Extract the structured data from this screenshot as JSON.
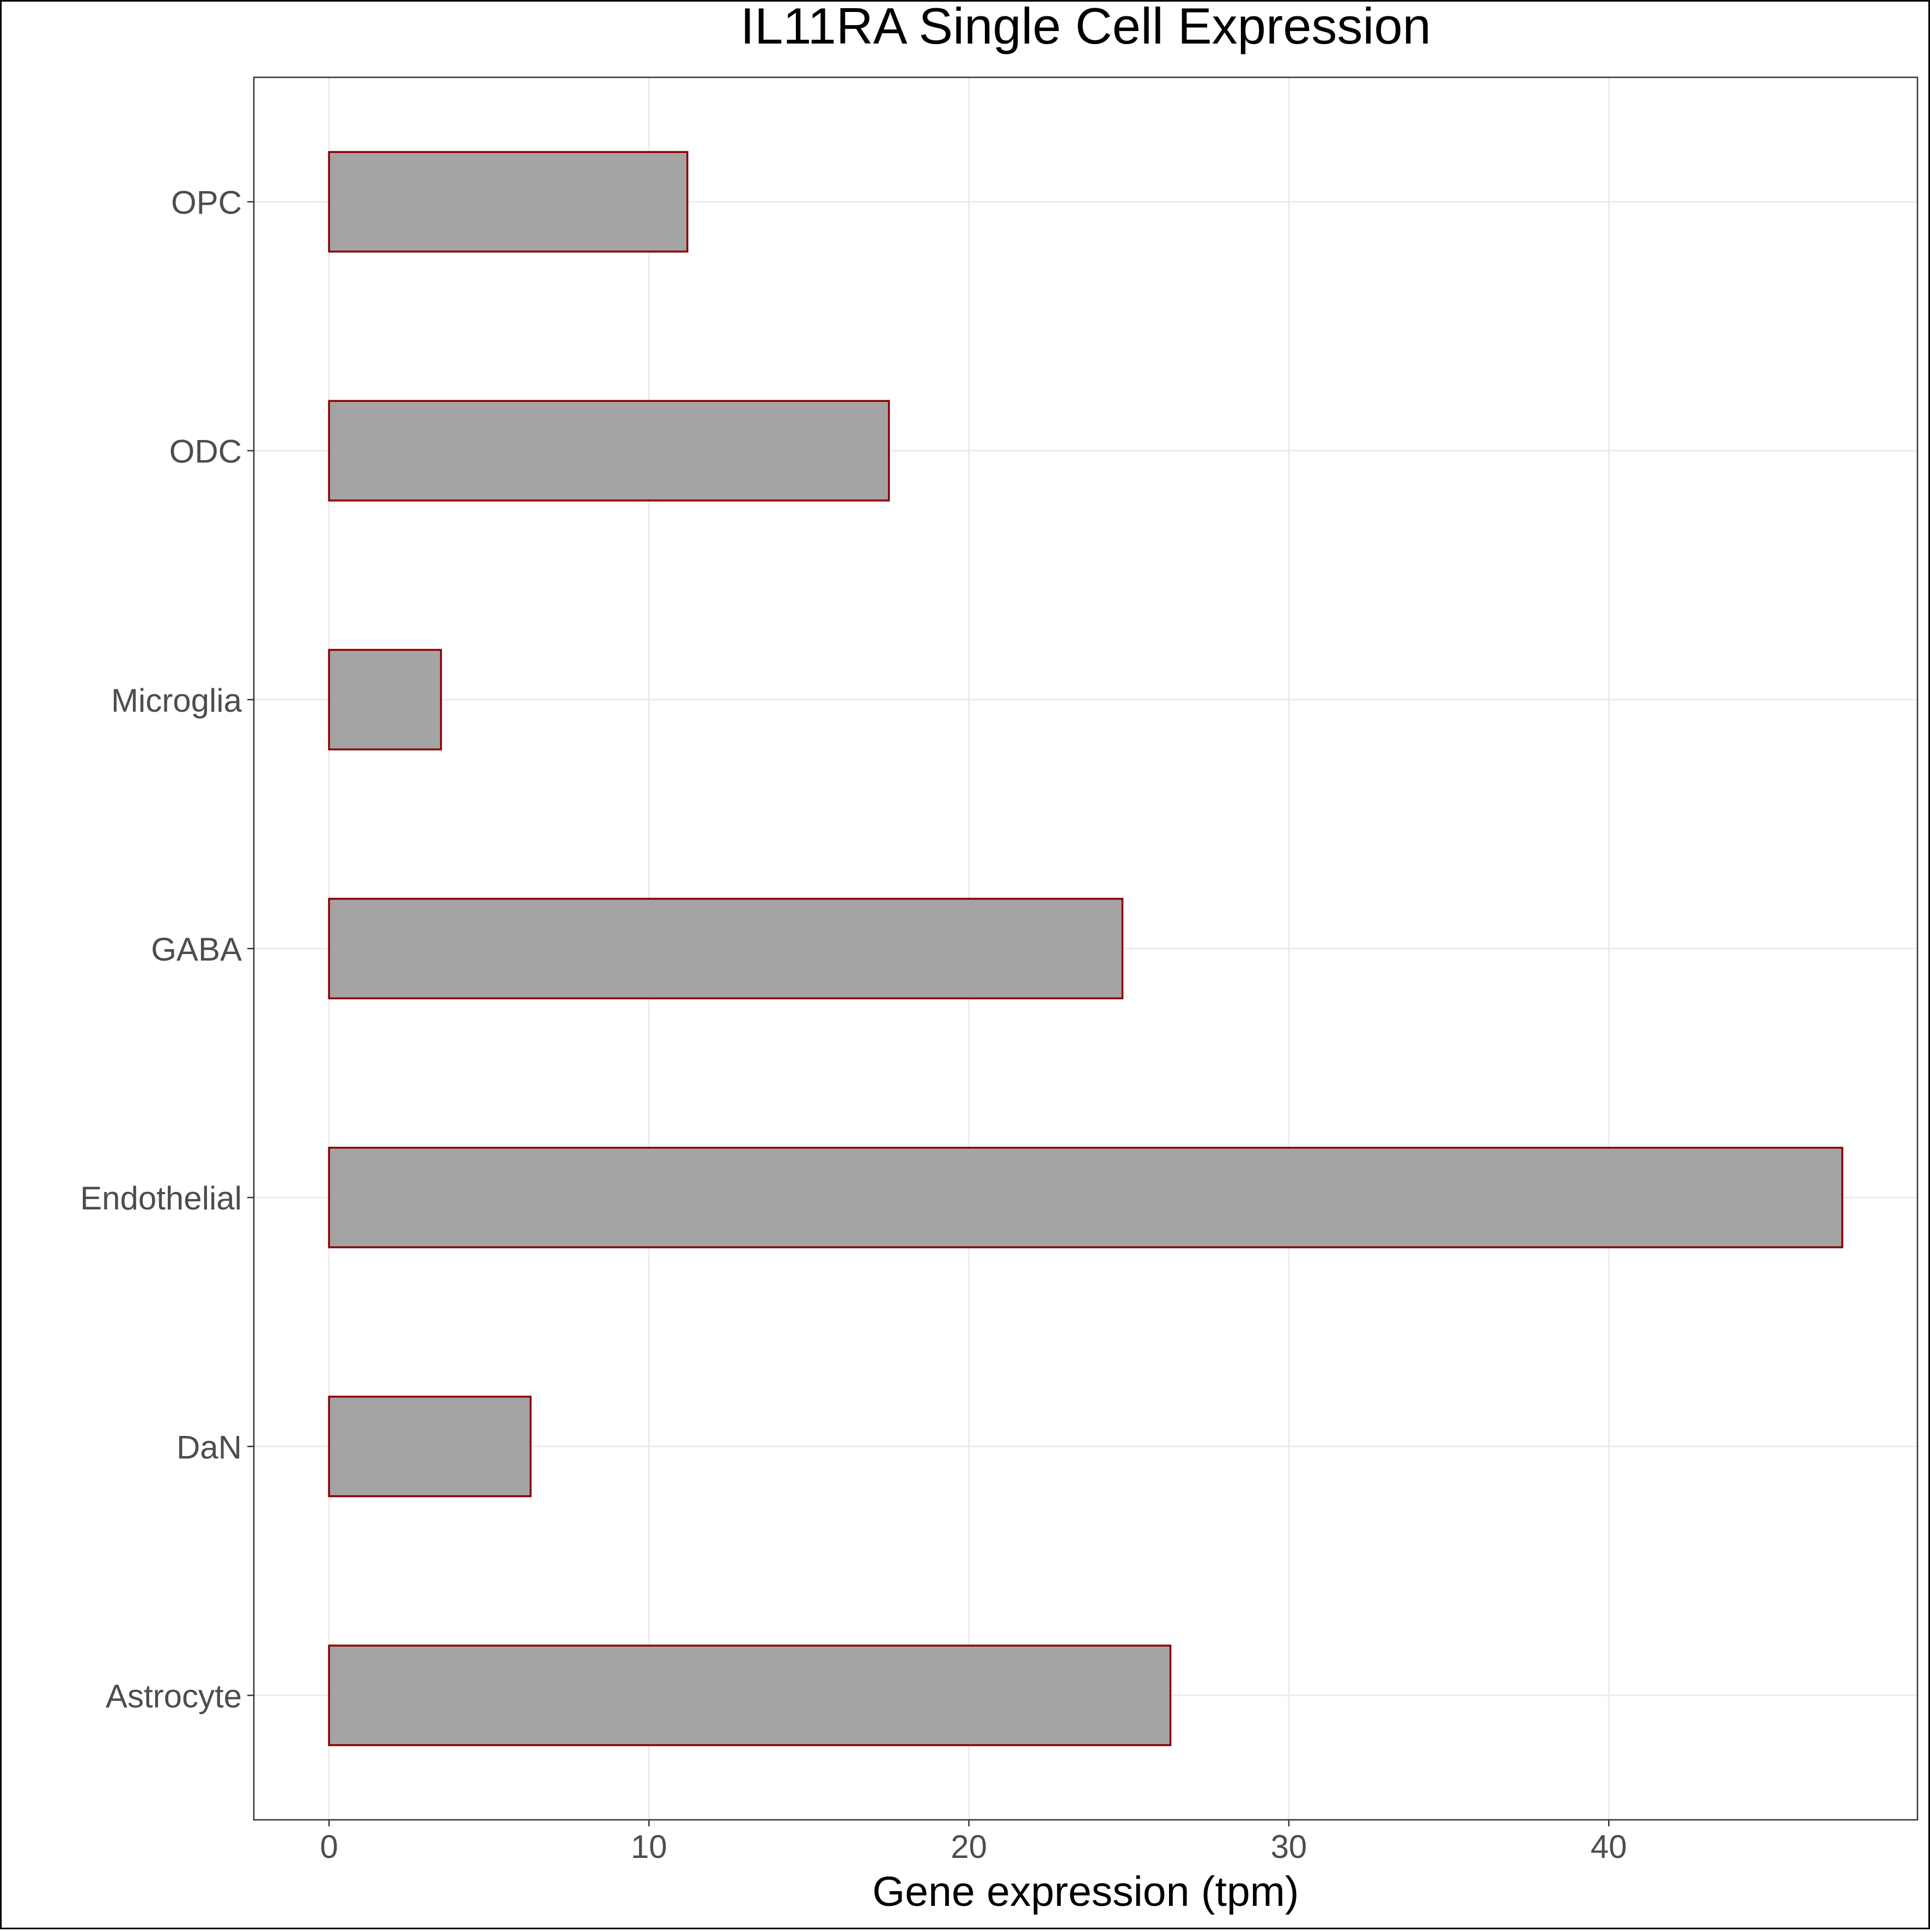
{
  "chart_data": {
    "type": "bar",
    "orientation": "horizontal",
    "title": "IL11RA Single Cell Expression",
    "xlabel": "Gene expression (tpm)",
    "ylabel": "",
    "categories": [
      "Astrocyte",
      "DaN",
      "Endothelial",
      "GABA",
      "Microglia",
      "ODC",
      "OPC"
    ],
    "values": [
      26.3,
      6.3,
      47.3,
      24.8,
      3.5,
      17.5,
      11.2
    ],
    "xlim": [
      -2.35,
      49.65
    ],
    "xticks": [
      0,
      10,
      20,
      30,
      40
    ],
    "grid": true,
    "bar_fill": "#a4a4a4",
    "bar_stroke": "#8b0000",
    "panel_border": "#333333",
    "grid_color": "#ebebeb"
  }
}
